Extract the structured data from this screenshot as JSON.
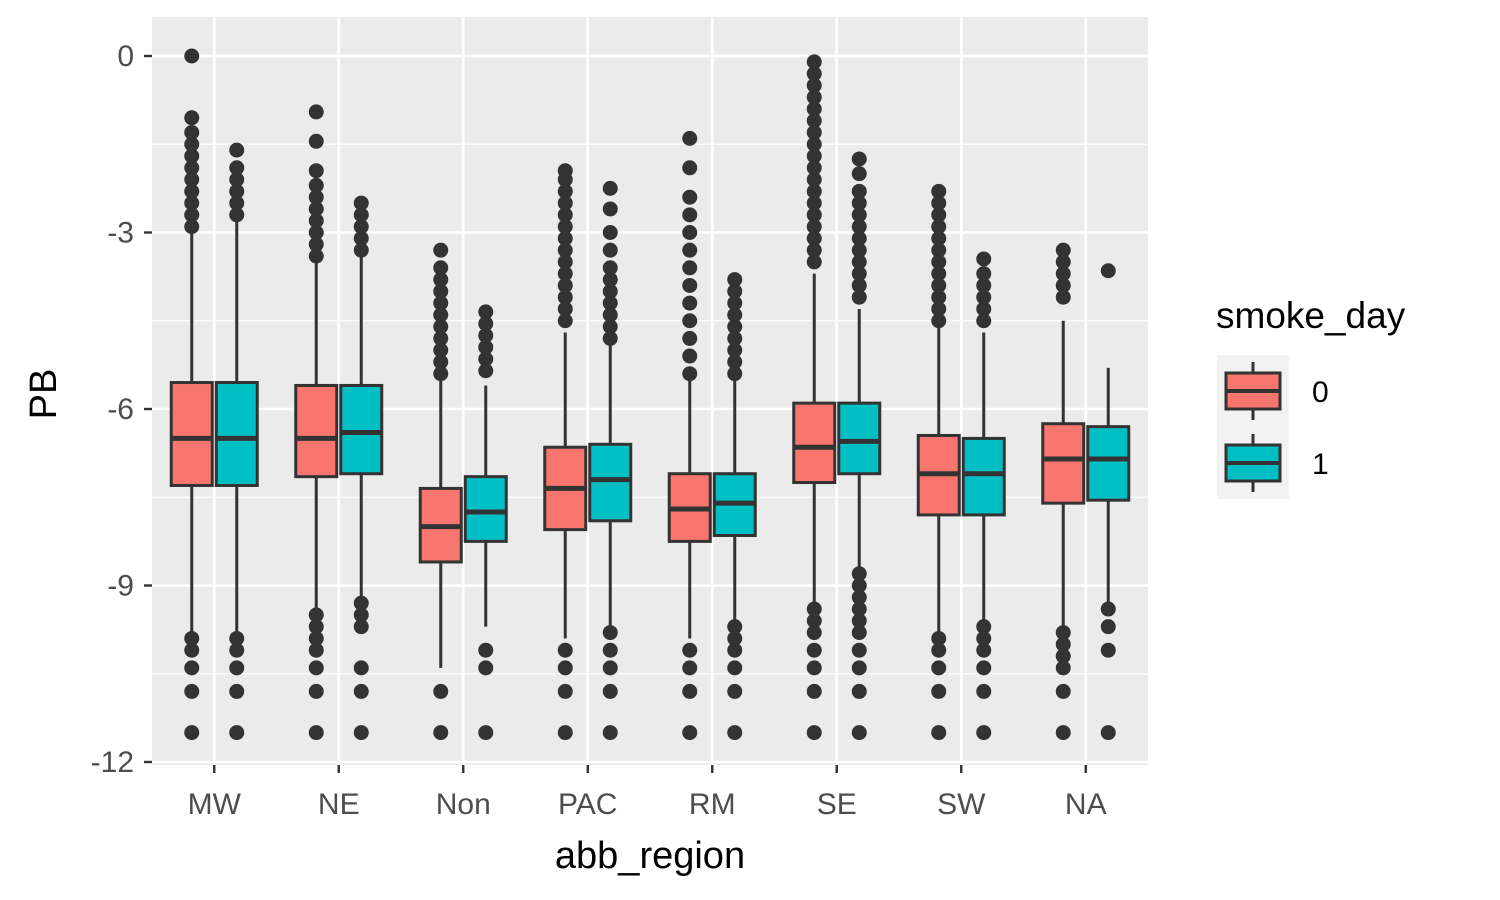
{
  "chart_data": {
    "type": "boxplot",
    "xlabel": "abb_region",
    "ylabel": "PB",
    "ylim": [
      -12,
      0.6
    ],
    "yticks": [
      0,
      -3,
      -6,
      -9,
      -12
    ],
    "yticklabels": [
      "0",
      "-3",
      "-6",
      "-9",
      "-12"
    ],
    "categories": [
      "MW",
      "NE",
      "Non",
      "PAC",
      "RM",
      "SE",
      "SW",
      "NA"
    ],
    "grid": true,
    "legend": {
      "title": "smoke_day",
      "placement": "right",
      "entries": [
        {
          "label": "0",
          "color": "#F8766D"
        },
        {
          "label": "1",
          "color": "#00BFC4"
        }
      ]
    },
    "series": [
      {
        "name": "0",
        "color": "#F8766D",
        "boxes": [
          {
            "category": "MW",
            "q1": -7.3,
            "median": -6.5,
            "q3": -5.55,
            "lower": -9.8,
            "upper": -3.0,
            "outliers": [
              0.0,
              -1.05,
              -1.3,
              -1.5,
              -1.7,
              -1.9,
              -2.1,
              -2.3,
              -2.5,
              -2.7,
              -2.9,
              -9.9,
              -10.1,
              -10.4,
              -10.8,
              -11.5
            ]
          },
          {
            "category": "NE",
            "q1": -7.15,
            "median": -6.5,
            "q3": -5.6,
            "lower": -9.4,
            "upper": -3.5,
            "outliers": [
              -0.95,
              -1.45,
              -1.95,
              -2.2,
              -2.4,
              -2.6,
              -2.8,
              -3.0,
              -3.2,
              -3.4,
              -9.5,
              -9.7,
              -9.9,
              -10.1,
              -10.4,
              -10.8,
              -11.5
            ]
          },
          {
            "category": "Non",
            "q1": -8.6,
            "median": -8.0,
            "q3": -7.35,
            "lower": -10.4,
            "upper": -5.5,
            "outliers": [
              -3.3,
              -3.6,
              -3.8,
              -4.0,
              -4.2,
              -4.4,
              -4.6,
              -4.8,
              -5.0,
              -5.2,
              -5.4,
              -10.8,
              -11.5
            ]
          },
          {
            "category": "PAC",
            "q1": -8.05,
            "median": -7.35,
            "q3": -6.65,
            "lower": -9.9,
            "upper": -4.7,
            "outliers": [
              -1.95,
              -2.1,
              -2.3,
              -2.5,
              -2.7,
              -2.9,
              -3.1,
              -3.3,
              -3.5,
              -3.7,
              -3.9,
              -4.1,
              -4.3,
              -4.5,
              -10.1,
              -10.4,
              -10.8,
              -11.5
            ]
          },
          {
            "category": "RM",
            "q1": -8.25,
            "median": -7.7,
            "q3": -7.1,
            "lower": -9.9,
            "upper": -5.5,
            "outliers": [
              -1.4,
              -1.9,
              -2.4,
              -2.7,
              -3.0,
              -3.3,
              -3.6,
              -3.9,
              -4.2,
              -4.5,
              -4.8,
              -5.1,
              -5.4,
              -10.1,
              -10.4,
              -10.8,
              -11.5
            ]
          },
          {
            "category": "SE",
            "q1": -7.25,
            "median": -6.65,
            "q3": -5.9,
            "lower": -9.3,
            "upper": -3.7,
            "outliers": [
              -0.1,
              -0.3,
              -0.5,
              -0.7,
              -0.9,
              -1.1,
              -1.3,
              -1.5,
              -1.7,
              -1.9,
              -2.1,
              -2.3,
              -2.5,
              -2.7,
              -2.9,
              -3.1,
              -3.3,
              -3.5,
              -9.4,
              -9.6,
              -9.8,
              -10.1,
              -10.4,
              -10.8,
              -11.5
            ]
          },
          {
            "category": "SW",
            "q1": -7.8,
            "median": -7.1,
            "q3": -6.45,
            "lower": -9.8,
            "upper": -4.6,
            "outliers": [
              -2.3,
              -2.5,
              -2.7,
              -2.9,
              -3.1,
              -3.3,
              -3.5,
              -3.7,
              -3.9,
              -4.1,
              -4.3,
              -4.5,
              -9.9,
              -10.1,
              -10.4,
              -10.8,
              -11.5
            ]
          },
          {
            "category": "NA",
            "q1": -7.6,
            "median": -6.85,
            "q3": -6.25,
            "lower": -9.7,
            "upper": -4.5,
            "outliers": [
              -3.3,
              -3.5,
              -3.7,
              -3.9,
              -4.1,
              -9.8,
              -10.0,
              -10.2,
              -10.4,
              -10.8,
              -11.5
            ]
          }
        ]
      },
      {
        "name": "1",
        "color": "#00BFC4",
        "boxes": [
          {
            "category": "MW",
            "q1": -7.3,
            "median": -6.5,
            "q3": -5.55,
            "lower": -9.8,
            "upper": -2.8,
            "outliers": [
              -1.6,
              -1.9,
              -2.1,
              -2.3,
              -2.5,
              -2.7,
              -9.9,
              -10.1,
              -10.4,
              -10.8,
              -11.5
            ]
          },
          {
            "category": "NE",
            "q1": -7.1,
            "median": -6.4,
            "q3": -5.6,
            "lower": -9.2,
            "upper": -3.4,
            "outliers": [
              -2.5,
              -2.7,
              -2.9,
              -3.1,
              -3.3,
              -9.3,
              -9.5,
              -9.7,
              -10.4,
              -10.8,
              -11.5
            ]
          },
          {
            "category": "Non",
            "q1": -8.25,
            "median": -7.75,
            "q3": -7.15,
            "lower": -9.7,
            "upper": -5.6,
            "outliers": [
              -4.35,
              -4.55,
              -4.75,
              -4.95,
              -5.15,
              -5.35,
              -10.1,
              -10.4,
              -11.5
            ]
          },
          {
            "category": "PAC",
            "q1": -7.9,
            "median": -7.2,
            "q3": -6.6,
            "lower": -9.7,
            "upper": -4.9,
            "outliers": [
              -2.25,
              -2.6,
              -3.0,
              -3.3,
              -3.6,
              -3.8,
              -4.0,
              -4.2,
              -4.4,
              -4.6,
              -4.8,
              -9.8,
              -10.1,
              -10.4,
              -10.8,
              -11.5
            ]
          },
          {
            "category": "RM",
            "q1": -8.15,
            "median": -7.6,
            "q3": -7.1,
            "lower": -9.6,
            "upper": -5.5,
            "outliers": [
              -3.8,
              -4.0,
              -4.2,
              -4.4,
              -4.6,
              -4.8,
              -5.0,
              -5.2,
              -5.4,
              -9.7,
              -9.9,
              -10.1,
              -10.4,
              -10.8,
              -11.5
            ]
          },
          {
            "category": "SE",
            "q1": -7.1,
            "median": -6.55,
            "q3": -5.9,
            "lower": -8.7,
            "upper": -4.3,
            "outliers": [
              -1.75,
              -2.0,
              -2.3,
              -2.5,
              -2.7,
              -2.9,
              -3.1,
              -3.3,
              -3.5,
              -3.7,
              -3.9,
              -4.1,
              -8.8,
              -9.0,
              -9.2,
              -9.4,
              -9.6,
              -9.8,
              -10.1,
              -10.4,
              -10.8,
              -11.5
            ]
          },
          {
            "category": "SW",
            "q1": -7.8,
            "median": -7.1,
            "q3": -6.5,
            "lower": -9.6,
            "upper": -4.7,
            "outliers": [
              -3.45,
              -3.7,
              -3.9,
              -4.1,
              -4.3,
              -4.5,
              -9.7,
              -9.9,
              -10.1,
              -10.4,
              -10.8,
              -11.5
            ]
          },
          {
            "category": "NA",
            "q1": -7.55,
            "median": -6.85,
            "q3": -6.3,
            "lower": -9.3,
            "upper": -5.3,
            "outliers": [
              -3.65,
              -9.4,
              -9.7,
              -10.1,
              -11.5
            ]
          }
        ]
      }
    ]
  }
}
